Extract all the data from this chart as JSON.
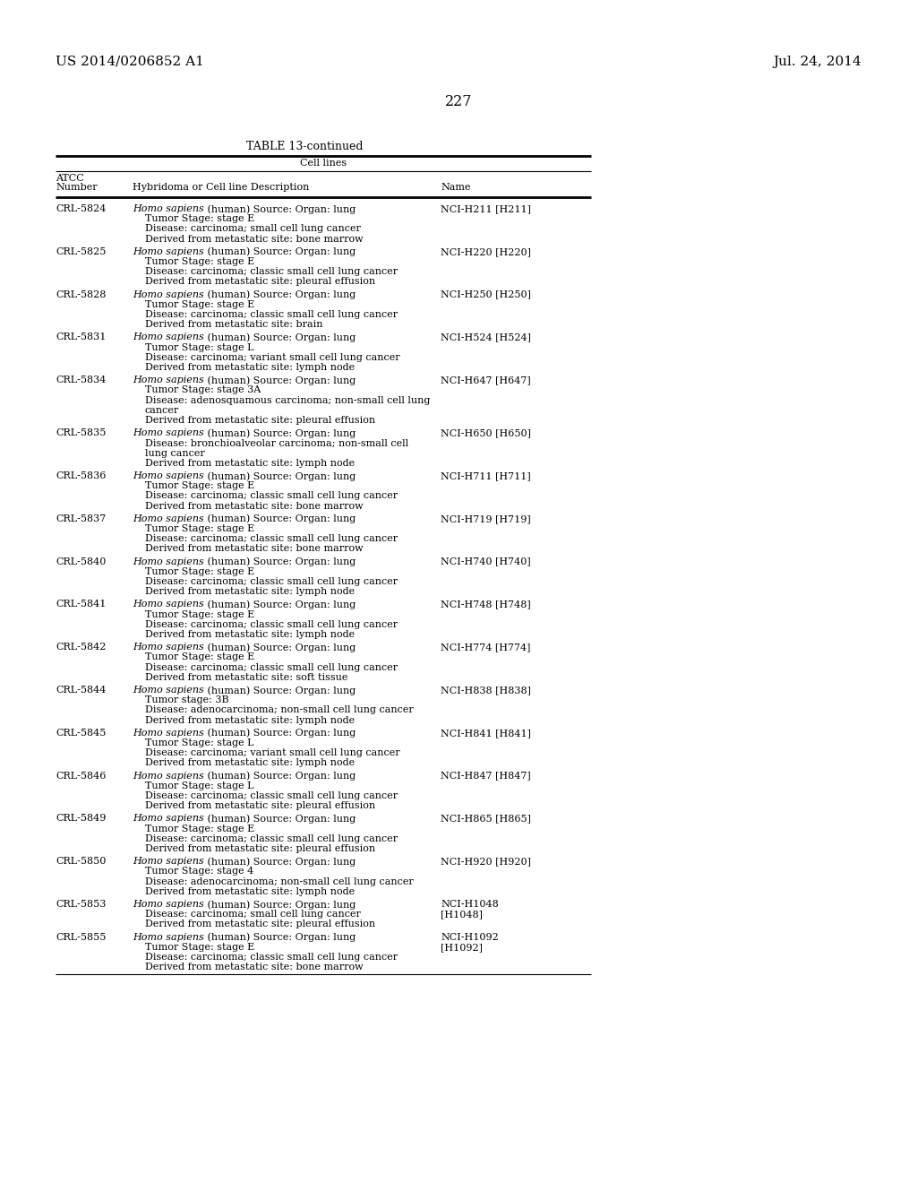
{
  "header_left": "US 2014/0206852 A1",
  "header_right": "Jul. 24, 2014",
  "page_number": "227",
  "table_title": "TABLE 13-continued",
  "col_header_span": "Cell lines",
  "col1_header_line1": "ATCC",
  "col1_header_line2": "Number",
  "col2_header": "Hybridoma or Cell line Description",
  "col3_header": "Name",
  "rows": [
    {
      "atcc": "CRL-5824",
      "desc": [
        [
          "mixed",
          "Homo sapiens",
          " (human) Source: Organ: lung"
        ],
        [
          "normal",
          "Tumor Stage: stage E"
        ],
        [
          "normal",
          "Disease: carcinoma; small cell lung cancer"
        ],
        [
          "normal",
          "Derived from metastatic site: bone marrow"
        ]
      ],
      "name": [
        "NCI-H211 [H211]"
      ]
    },
    {
      "atcc": "CRL-5825",
      "desc": [
        [
          "mixed",
          "Homo sapiens",
          " (human) Source: Organ: lung"
        ],
        [
          "normal",
          "Tumor Stage: stage E"
        ],
        [
          "normal",
          "Disease: carcinoma; classic small cell lung cancer"
        ],
        [
          "normal",
          "Derived from metastatic site: pleural effusion"
        ]
      ],
      "name": [
        "NCI-H220 [H220]"
      ]
    },
    {
      "atcc": "CRL-5828",
      "desc": [
        [
          "mixed",
          "Homo sapiens",
          " (human) Source: Organ: lung"
        ],
        [
          "normal",
          "Tumor Stage: stage E"
        ],
        [
          "normal",
          "Disease: carcinoma; classic small cell lung cancer"
        ],
        [
          "normal",
          "Derived from metastatic site: brain"
        ]
      ],
      "name": [
        "NCI-H250 [H250]"
      ]
    },
    {
      "atcc": "CRL-5831",
      "desc": [
        [
          "mixed",
          "Homo sapiens",
          " (human) Source: Organ: lung"
        ],
        [
          "normal",
          "Tumor Stage: stage L"
        ],
        [
          "normal",
          "Disease: carcinoma; variant small cell lung cancer"
        ],
        [
          "normal",
          "Derived from metastatic site: lymph node"
        ]
      ],
      "name": [
        "NCI-H524 [H524]"
      ]
    },
    {
      "atcc": "CRL-5834",
      "desc": [
        [
          "mixed",
          "Homo sapiens",
          " (human) Source: Organ: lung"
        ],
        [
          "normal",
          "Tumor Stage: stage 3A"
        ],
        [
          "normal",
          "Disease: adenosquamous carcinoma; non-small cell lung"
        ],
        [
          "normal",
          "cancer"
        ],
        [
          "normal",
          "Derived from metastatic site: pleural effusion"
        ]
      ],
      "name": [
        "NCI-H647 [H647]"
      ]
    },
    {
      "atcc": "CRL-5835",
      "desc": [
        [
          "mixed",
          "Homo sapiens",
          " (human) Source: Organ: lung"
        ],
        [
          "normal",
          "Disease: bronchioalveolar carcinoma; non-small cell"
        ],
        [
          "normal",
          "lung cancer"
        ],
        [
          "normal",
          "Derived from metastatic site: lymph node"
        ]
      ],
      "name": [
        "NCI-H650 [H650]"
      ]
    },
    {
      "atcc": "CRL-5836",
      "desc": [
        [
          "mixed",
          "Homo sapiens",
          " (human) Source: Organ: lung"
        ],
        [
          "normal",
          "Tumor Stage: stage E"
        ],
        [
          "normal",
          "Disease: carcinoma; classic small cell lung cancer"
        ],
        [
          "normal",
          "Derived from metastatic site: bone marrow"
        ]
      ],
      "name": [
        "NCI-H711 [H711]"
      ]
    },
    {
      "atcc": "CRL-5837",
      "desc": [
        [
          "mixed",
          "Homo sapiens",
          " (human) Source: Organ: lung"
        ],
        [
          "normal",
          "Tumor Stage: stage E"
        ],
        [
          "normal",
          "Disease: carcinoma; classic small cell lung cancer"
        ],
        [
          "normal",
          "Derived from metastatic site: bone marrow"
        ]
      ],
      "name": [
        "NCI-H719 [H719]"
      ]
    },
    {
      "atcc": "CRL-5840",
      "desc": [
        [
          "mixed",
          "Homo sapiens",
          " (human) Source: Organ: lung"
        ],
        [
          "normal",
          "Tumor Stage: stage E"
        ],
        [
          "normal",
          "Disease: carcinoma; classic small cell lung cancer"
        ],
        [
          "normal",
          "Derived from metastatic site: lymph node"
        ]
      ],
      "name": [
        "NCI-H740 [H740]"
      ]
    },
    {
      "atcc": "CRL-5841",
      "desc": [
        [
          "mixed",
          "Homo sapiens",
          " (human) Source: Organ: lung"
        ],
        [
          "normal",
          "Tumor Stage: stage E"
        ],
        [
          "normal",
          "Disease: carcinoma; classic small cell lung cancer"
        ],
        [
          "normal",
          "Derived from metastatic site: lymph node"
        ]
      ],
      "name": [
        "NCI-H748 [H748]"
      ]
    },
    {
      "atcc": "CRL-5842",
      "desc": [
        [
          "mixed",
          "Homo sapiens",
          " (human) Source: Organ: lung"
        ],
        [
          "normal",
          "Tumor Stage: stage E"
        ],
        [
          "normal",
          "Disease: carcinoma; classic small cell lung cancer"
        ],
        [
          "normal",
          "Derived from metastatic site: soft tissue"
        ]
      ],
      "name": [
        "NCI-H774 [H774]"
      ]
    },
    {
      "atcc": "CRL-5844",
      "desc": [
        [
          "mixed",
          "Homo sapiens",
          " (human) Source: Organ: lung"
        ],
        [
          "normal",
          "Tumor stage: 3B"
        ],
        [
          "normal",
          "Disease: adenocarcinoma; non-small cell lung cancer"
        ],
        [
          "normal",
          "Derived from metastatic site: lymph node"
        ]
      ],
      "name": [
        "NCI-H838 [H838]"
      ]
    },
    {
      "atcc": "CRL-5845",
      "desc": [
        [
          "mixed",
          "Homo sapiens",
          " (human) Source: Organ: lung"
        ],
        [
          "normal",
          "Tumor Stage: stage L"
        ],
        [
          "normal",
          "Disease: carcinoma; variant small cell lung cancer"
        ],
        [
          "normal",
          "Derived from metastatic site: lymph node"
        ]
      ],
      "name": [
        "NCI-H841 [H841]"
      ]
    },
    {
      "atcc": "CRL-5846",
      "desc": [
        [
          "mixed",
          "Homo sapiens",
          " (human) Source: Organ: lung"
        ],
        [
          "normal",
          "Tumor Stage: stage L"
        ],
        [
          "normal",
          "Disease: carcinoma; classic small cell lung cancer"
        ],
        [
          "normal",
          "Derived from metastatic site: pleural effusion"
        ]
      ],
      "name": [
        "NCI-H847 [H847]"
      ]
    },
    {
      "atcc": "CRL-5849",
      "desc": [
        [
          "mixed",
          "Homo sapiens",
          " (human) Source: Organ: lung"
        ],
        [
          "normal",
          "Tumor Stage: stage E"
        ],
        [
          "normal",
          "Disease: carcinoma; classic small cell lung cancer"
        ],
        [
          "normal",
          "Derived from metastatic site: pleural effusion"
        ]
      ],
      "name": [
        "NCI-H865 [H865]"
      ]
    },
    {
      "atcc": "CRL-5850",
      "desc": [
        [
          "mixed",
          "Homo sapiens",
          " (human) Source: Organ: lung"
        ],
        [
          "normal",
          "Tumor Stage: stage 4"
        ],
        [
          "normal",
          "Disease: adenocarcinoma; non-small cell lung cancer"
        ],
        [
          "normal",
          "Derived from metastatic site: lymph node"
        ]
      ],
      "name": [
        "NCI-H920 [H920]"
      ]
    },
    {
      "atcc": "CRL-5853",
      "desc": [
        [
          "mixed",
          "Homo sapiens",
          " (human) Source: Organ: lung"
        ],
        [
          "normal",
          "Disease: carcinoma; small cell lung cancer"
        ],
        [
          "normal",
          "Derived from metastatic site: pleural effusion"
        ]
      ],
      "name": [
        "NCI-H1048",
        "[H1048]"
      ]
    },
    {
      "atcc": "CRL-5855",
      "desc": [
        [
          "mixed",
          "Homo sapiens",
          " (human) Source: Organ: lung"
        ],
        [
          "normal",
          "Tumor Stage: stage E"
        ],
        [
          "normal",
          "Disease: carcinoma; classic small cell lung cancer"
        ],
        [
          "normal",
          "Derived from metastatic site: bone marrow"
        ]
      ],
      "name": [
        "NCI-H1092",
        "[H1092]"
      ]
    }
  ]
}
